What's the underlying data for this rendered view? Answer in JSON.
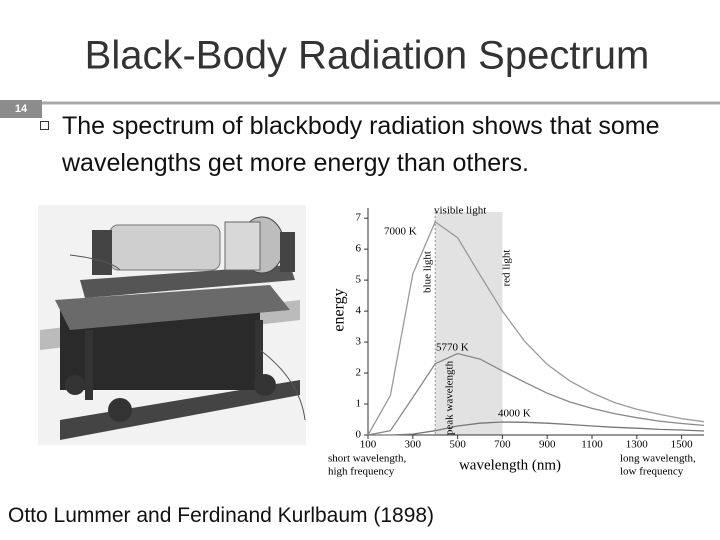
{
  "header": {
    "title": "Black-Body Radiation Spectrum",
    "slide_number": "14"
  },
  "bullet": "The spectrum of blackbody radiation shows that some wavelengths get more energy than others.",
  "caption": "Otto Lummer and Ferdinand Kurlbaum (1898)",
  "chart_data": {
    "type": "line",
    "ylabel": "energy",
    "xlabel": "wavelength (nm)",
    "annotations": [
      "visible light",
      "blue light",
      "red light",
      "peak wavelength",
      "short wavelength,",
      "high frequency",
      "long wavelength,",
      "low frequency"
    ],
    "band": [
      400,
      700
    ],
    "x": [
      100,
      200,
      300,
      400,
      500,
      600,
      700,
      800,
      900,
      1000,
      1100,
      1200,
      1300,
      1400,
      1500,
      1600
    ],
    "series": [
      {
        "name": "7000 K",
        "color": "#9a9a9a",
        "values": [
          0.0,
          1.28,
          5.2,
          6.88,
          6.37,
          5.17,
          4.0,
          3.02,
          2.28,
          1.75,
          1.36,
          1.05,
          0.83,
          0.67,
          0.53,
          0.43
        ]
      },
      {
        "name": "5770 K",
        "color": "#888888",
        "values": [
          0.0,
          0.14,
          1.21,
          2.3,
          2.63,
          2.45,
          2.07,
          1.7,
          1.35,
          1.07,
          0.86,
          0.69,
          0.56,
          0.45,
          0.37,
          0.31
        ]
      },
      {
        "name": "4000 K",
        "color": "#777777",
        "values": [
          0.0,
          0.0,
          0.03,
          0.14,
          0.29,
          0.38,
          0.42,
          0.41,
          0.38,
          0.34,
          0.29,
          0.25,
          0.22,
          0.18,
          0.16,
          0.13
        ]
      }
    ],
    "xlim": [
      100,
      1600
    ],
    "ylim": [
      0,
      7.2
    ],
    "xticks": [
      100,
      300,
      500,
      700,
      900,
      1100,
      1300,
      1500
    ],
    "yticks": [
      0,
      1,
      2,
      3,
      4,
      5,
      6,
      7
    ]
  }
}
